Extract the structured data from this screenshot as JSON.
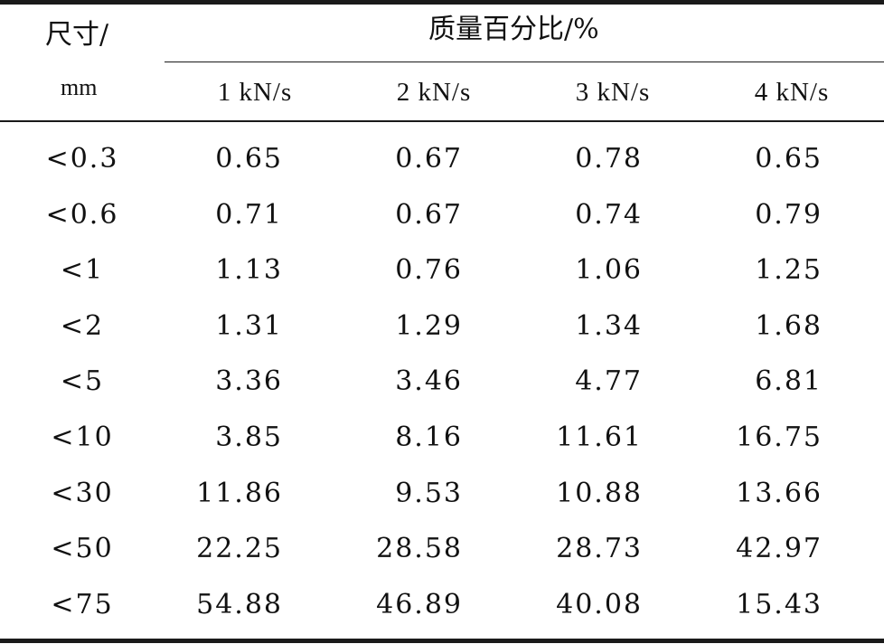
{
  "header": {
    "size_label": "尺寸/",
    "unit_label": "mm",
    "group_label": "质量百分比/%",
    "columns": [
      "1 kN/s",
      "2 kN/s",
      "3 kN/s",
      "4 kN/s"
    ]
  },
  "rows": [
    {
      "size": "<0.3",
      "values": [
        "0.65",
        "0.67",
        "0.78",
        "0.65"
      ]
    },
    {
      "size": "<0.6",
      "values": [
        "0.71",
        "0.67",
        "0.74",
        "0.79"
      ]
    },
    {
      "size": "<1",
      "values": [
        "1.13",
        "0.76",
        "1.06",
        "1.25"
      ]
    },
    {
      "size": "<2",
      "values": [
        "1.31",
        "1.29",
        "1.34",
        "1.68"
      ]
    },
    {
      "size": "<5",
      "values": [
        "3.36",
        "3.46",
        "4.77",
        "6.81"
      ]
    },
    {
      "size": "<10",
      "values": [
        "3.85",
        "8.16",
        "11.61",
        "16.75"
      ]
    },
    {
      "size": "<30",
      "values": [
        "11.86",
        "9.53",
        "10.88",
        "13.66"
      ]
    },
    {
      "size": "<50",
      "values": [
        "22.25",
        "28.58",
        "28.73",
        "42.97"
      ]
    },
    {
      "size": "<75",
      "values": [
        "54.88",
        "46.89",
        "40.08",
        "15.43"
      ]
    }
  ]
}
